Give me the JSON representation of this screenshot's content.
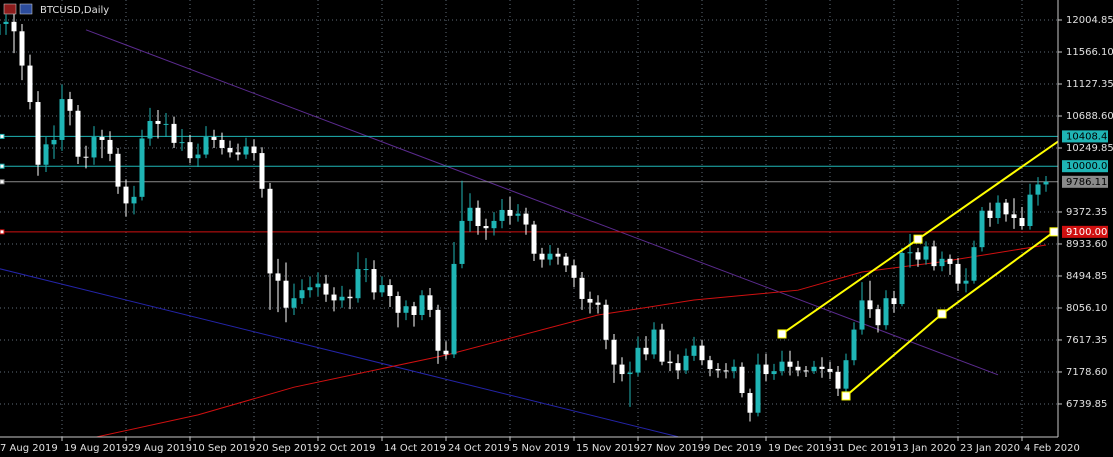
{
  "chart_data": {
    "type": "candlestick",
    "title": "BTCUSD,Daily",
    "up_color": "#1fb5b5",
    "down_color": "#ffffff",
    "grid": true,
    "grid_color": "#5f6b78",
    "categories": [
      "7 Aug 2019",
      null,
      null,
      null,
      null,
      null,
      null,
      null,
      "19 Aug 2019",
      null,
      null,
      null,
      null,
      null,
      null,
      null,
      "29 Aug 2019",
      null,
      null,
      null,
      null,
      null,
      null,
      null,
      "10 Sep 2019",
      null,
      null,
      null,
      null,
      null,
      null,
      null,
      "20 Sep 2019",
      null,
      null,
      null,
      null,
      null,
      null,
      null,
      "2 Oct 2019",
      null,
      null,
      null,
      null,
      null,
      null,
      null,
      "14 Oct 2019",
      null,
      null,
      null,
      null,
      null,
      null,
      null,
      "24 Oct 2019",
      null,
      null,
      null,
      null,
      null,
      null,
      null,
      "5 Nov 2019",
      null,
      null,
      null,
      null,
      null,
      null,
      null,
      "15 Nov 2019",
      null,
      null,
      null,
      null,
      null,
      null,
      null,
      "27 Nov 2019",
      null,
      null,
      null,
      null,
      null,
      null,
      null,
      "9 Dec 2019",
      null,
      null,
      null,
      null,
      null,
      null,
      null,
      "19 Dec 2019",
      null,
      null,
      null,
      null,
      null,
      null,
      null,
      "31 Dec 2019",
      null,
      null,
      null,
      null,
      null,
      null,
      null,
      "13 Jan 2020",
      null,
      null,
      null,
      null,
      null,
      null,
      null,
      "23 Jan 2020",
      null,
      null,
      null,
      null,
      null,
      null,
      null,
      "4 Feb 2020",
      null,
      null,
      null
    ],
    "open": [
      11800,
      11950,
      11980,
      11850,
      11380,
      10880,
      10020,
      10300,
      10360,
      10920,
      10760,
      10130,
      10120,
      10400,
      10360,
      10170,
      9720,
      9490,
      9580,
      10380,
      10620,
      10580,
      10580,
      10320,
      10330,
      10110,
      10160,
      10400,
      10360,
      10250,
      10190,
      10160,
      10270,
      10180,
      9690,
      8530,
      8430,
      8060,
      8190,
      8300,
      8340,
      8390,
      8240,
      8160,
      8210,
      8190,
      8590,
      8590,
      8270,
      8370,
      8220,
      7990,
      8080,
      7960,
      8230,
      8030,
      7470,
      7420,
      8660,
      9250,
      9430,
      9180,
      9150,
      9250,
      9400,
      9320,
      9350,
      9200,
      8800,
      8720,
      8800,
      8760,
      8640,
      8470,
      8180,
      8130,
      8100,
      7620,
      7280,
      7150,
      7170,
      7510,
      7420,
      7760,
      7320,
      7300,
      7200,
      7400,
      7540,
      7340,
      7220,
      7200,
      7190,
      7250,
      6890,
      6620,
      7280,
      7150,
      7190,
      7320,
      7250,
      7200,
      7190,
      7250,
      7220,
      7180,
      6950,
      7340,
      7760,
      8160,
      8040,
      7820,
      8190,
      8110,
      8810,
      8820,
      8720,
      8900,
      8630,
      8730,
      8660,
      8390,
      8430,
      8890,
      9390,
      9290,
      9500,
      9340,
      9290,
      9180,
      9610,
      9750
    ],
    "high": [
      12100,
      12080,
      12100,
      11950,
      11530,
      11030,
      10400,
      10560,
      11120,
      11020,
      10840,
      10280,
      10550,
      10500,
      10480,
      10250,
      9820,
      9730,
      10500,
      10800,
      10770,
      10730,
      10680,
      10510,
      10430,
      10310,
      10550,
      10500,
      10460,
      10350,
      10310,
      10390,
      10370,
      10260,
      9770,
      8730,
      8680,
      8390,
      8450,
      8490,
      8540,
      8510,
      8340,
      8360,
      8310,
      8820,
      8740,
      8710,
      8490,
      8450,
      8280,
      8160,
      8140,
      8300,
      8330,
      8100,
      7600,
      8960,
      9800,
      9630,
      9530,
      9280,
      9370,
      9550,
      9580,
      9480,
      9430,
      9250,
      8880,
      8920,
      8880,
      8810,
      8720,
      8550,
      8280,
      8230,
      8170,
      7700,
      7380,
      7320,
      7660,
      7670,
      7860,
      7840,
      7470,
      7420,
      7500,
      7660,
      7620,
      7400,
      7300,
      7300,
      7350,
      7310,
      6950,
      7430,
      7430,
      7290,
      7470,
      7470,
      7330,
      7260,
      7330,
      7380,
      7320,
      7260,
      7430,
      7860,
      8410,
      8430,
      8100,
      8300,
      8290,
      8880,
      9070,
      8880,
      8970,
      8980,
      8830,
      8790,
      8740,
      8600,
      8980,
      9440,
      9500,
      9600,
      9550,
      9560,
      9440,
      9760,
      9850,
      9866
    ],
    "low": [
      11650,
      11800,
      11550,
      11180,
      10780,
      9870,
      9920,
      10100,
      10210,
      10560,
      10030,
      9970,
      10020,
      10110,
      10070,
      9620,
      9310,
      9340,
      9530,
      10280,
      10380,
      10400,
      10250,
      10210,
      10040,
      9990,
      10110,
      10250,
      10160,
      10120,
      10080,
      10100,
      10080,
      9570,
      8030,
      8000,
      7860,
      7960,
      8110,
      8200,
      8220,
      8140,
      8010,
      8060,
      8040,
      8130,
      8410,
      8170,
      8210,
      8070,
      7790,
      7890,
      7800,
      7890,
      7930,
      7290,
      7350,
      7370,
      8600,
      9100,
      9060,
      8990,
      9050,
      9150,
      9200,
      9240,
      9060,
      8700,
      8610,
      8640,
      8650,
      8550,
      8340,
      8030,
      7980,
      7980,
      7490,
      7030,
      7050,
      6700,
      7120,
      7340,
      7360,
      7270,
      7190,
      7080,
      7150,
      7330,
      7270,
      7120,
      7100,
      7090,
      7090,
      6830,
      6500,
      6570,
      7050,
      7070,
      7130,
      7130,
      7120,
      7110,
      7150,
      7100,
      7080,
      6850,
      6880,
      7270,
      7690,
      7920,
      7720,
      7760,
      7990,
      8080,
      8610,
      8620,
      8650,
      8570,
      8560,
      8510,
      8290,
      8270,
      8390,
      8830,
      9170,
      9210,
      9240,
      9140,
      9130,
      9130,
      9460,
      9650
    ],
    "close": [
      11950,
      11980,
      11850,
      11380,
      10880,
      10020,
      10300,
      10360,
      10920,
      10760,
      10130,
      10120,
      10400,
      10360,
      10170,
      9720,
      9490,
      9580,
      10380,
      10620,
      10580,
      10580,
      10320,
      10330,
      10110,
      10160,
      10400,
      10360,
      10250,
      10190,
      10160,
      10270,
      10180,
      9690,
      8530,
      8430,
      8060,
      8190,
      8300,
      8340,
      8390,
      8240,
      8160,
      8210,
      8190,
      8590,
      8590,
      8270,
      8370,
      8220,
      7990,
      8080,
      7960,
      8230,
      8030,
      7470,
      7420,
      8660,
      9250,
      9430,
      9180,
      9150,
      9250,
      9400,
      9320,
      9350,
      9200,
      8800,
      8720,
      8800,
      8760,
      8640,
      8470,
      8180,
      8130,
      8100,
      7620,
      7280,
      7150,
      7170,
      7510,
      7420,
      7760,
      7320,
      7300,
      7200,
      7400,
      7540,
      7340,
      7220,
      7200,
      7190,
      7250,
      6890,
      6620,
      7280,
      7150,
      7190,
      7320,
      7250,
      7200,
      7190,
      7250,
      7220,
      7180,
      6950,
      7340,
      7760,
      8160,
      8040,
      7820,
      8190,
      8110,
      8810,
      8820,
      8720,
      8900,
      8630,
      8730,
      8660,
      8390,
      8430,
      8890,
      9390,
      9290,
      9500,
      9340,
      9290,
      9180,
      9610,
      9750,
      9786.11
    ],
    "ylim": [
      6287,
      12279
    ],
    "yticks": [
      12004.85,
      {
        "value": 11566.1,
        "label": "11566.10"
      },
      11127.35,
      {
        "value": 10688.6,
        "label": "10688.60"
      },
      10249.85,
      9372.35,
      {
        "value": 8933.6,
        "label": "8933.60"
      },
      8494.85,
      {
        "value": 8056.1,
        "label": "8056.10"
      },
      7617.35,
      {
        "value": 7178.6,
        "label": "7178.60"
      },
      6739.85
    ],
    "levels": [
      {
        "value": 10408.47,
        "label": "10408.47",
        "color": "#1fb5b5",
        "text_color": "#000000"
      },
      {
        "value": 10000,
        "label": "10000.00",
        "color": "#1fb5b5",
        "text_color": "#000000"
      },
      {
        "value": 9786.11,
        "label": "9786.11",
        "color": "#8a8a8a",
        "text_color": "#000000"
      },
      {
        "value": 9100,
        "label": "9100.00",
        "color": "#d01010",
        "text_color": "#ffffff"
      }
    ],
    "moving_average": {
      "color": "#d01010",
      "x": [
        12,
        25,
        37,
        56,
        75,
        87,
        100,
        108,
        118,
        131
      ],
      "values": [
        6280,
        6590,
        6970,
        7410,
        7960,
        8165,
        8300,
        8550,
        8690,
        8920
      ]
    },
    "trendlines": [
      {
        "color": "#5b2b8f",
        "x": [
          11,
          125
        ],
        "values": [
          11870,
          7140
        ]
      },
      {
        "color": "#2424a8",
        "x": [
          0,
          85
        ],
        "values": [
          8600,
          6290
        ]
      }
    ],
    "channel": {
      "color": "#ffff00",
      "lines": [
        {
          "x": [
            98,
            115
          ],
          "values": [
            7700,
            9000
          ],
          "ray": true
        },
        {
          "x": [
            106,
            118,
            132
          ],
          "values": [
            6850,
            7975,
            9100
          ],
          "ray": false
        }
      ]
    }
  }
}
